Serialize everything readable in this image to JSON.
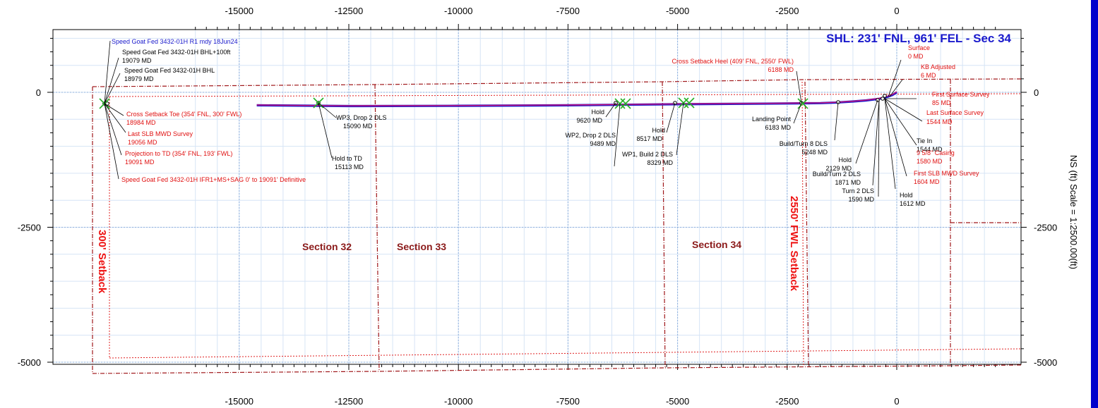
{
  "chart_data": {
    "type": "line",
    "title": "SHL: 231' FNL, 961' FEL - Sec 34",
    "y_axis_label": "NS (ft) Scale = 1:2500.00(ft)",
    "x_ticks": [
      -15000,
      -12500,
      -10000,
      -7500,
      -5000,
      -2500,
      0
    ],
    "y_ticks": [
      0,
      -2500,
      -5000
    ],
    "x_tick_labels": [
      "-15000",
      "-12500",
      "-10000",
      "-7500",
      "-5000",
      "-2500",
      "0"
    ],
    "y_tick_labels": [
      "0",
      "-2500",
      "-5000"
    ],
    "xlim": [
      -16000,
      2300
    ],
    "ylim": [
      -5500,
      1200
    ],
    "grid": true,
    "series": [
      {
        "name": "Speed Goat Fed 3432-01H R1 mdy 18Jun24",
        "color": "#1a1acc",
        "x": [
          0,
          -40,
          -100,
          -200,
          -400,
          -700,
          -1000,
          -1400,
          -1740,
          -3000,
          -5000,
          -7500,
          -10000,
          -12500,
          -14600
        ],
        "y": [
          0,
          -20,
          -50,
          -80,
          -120,
          -150,
          -170,
          -190,
          -200,
          -210,
          -220,
          -240,
          -250,
          -255,
          -240
        ]
      },
      {
        "name": "Speed Goat Fed 3432-01H IFR1+MS+SAG 0' to 19091' Definitive",
        "color": "#cc1177",
        "x": [
          0,
          -40,
          -100,
          -200,
          -400,
          -700,
          -1000,
          -1400,
          -1740,
          -3000,
          -5000,
          -7500,
          -10000,
          -12500,
          -14600
        ],
        "y": [
          10,
          -10,
          -40,
          -70,
          -110,
          -145,
          -165,
          -185,
          -195,
          -205,
          -215,
          -235,
          -245,
          -250,
          -235
        ]
      }
    ],
    "annotations": [
      {
        "text": "Speed Goat Fed 3432-01H R1 mdy 18Jun24",
        "color": "blue"
      },
      {
        "text": "Speed Goat Fed 3432-01H BHL+100ft",
        "color": "black"
      },
      {
        "text": "19079 MD",
        "color": "black"
      },
      {
        "text": "Speed Goat Fed 3432-01H BHL",
        "color": "black"
      },
      {
        "text": "18979 MD",
        "color": "black"
      },
      {
        "text": "Cross Setback Toe (354' FNL, 300' FWL)",
        "color": "red"
      },
      {
        "text": "18984 MD",
        "color": "red"
      },
      {
        "text": "Last SLB MWD Survey",
        "color": "red"
      },
      {
        "text": "19056 MD",
        "color": "red"
      },
      {
        "text": "Projection to TD (354' FNL, 193' FWL)",
        "color": "red"
      },
      {
        "text": "19091 MD",
        "color": "red"
      },
      {
        "text": "Speed Goat Fed 3432-01H IFR1+MS+SAG 0' to 19091' Definitive",
        "color": "red"
      },
      {
        "text": "WP3, Drop 2 DLS",
        "color": "black"
      },
      {
        "text": "15090 MD",
        "color": "black"
      },
      {
        "text": "Hold to TD",
        "color": "black"
      },
      {
        "text": "15113 MD",
        "color": "black"
      },
      {
        "text": "Hold",
        "color": "black"
      },
      {
        "text": "9620 MD",
        "color": "black"
      },
      {
        "text": "WP2, Drop 2 DLS",
        "color": "black"
      },
      {
        "text": "9489 MD",
        "color": "black"
      },
      {
        "text": "Hold",
        "color": "black"
      },
      {
        "text": "8517 MD",
        "color": "black"
      },
      {
        "text": "WP1, Build 2 DLS",
        "color": "black"
      },
      {
        "text": "8329 MD",
        "color": "black"
      },
      {
        "text": "Cross Setback Heel (409' FNL, 2550' FWL)",
        "color": "red"
      },
      {
        "text": "6188 MD",
        "color": "red"
      },
      {
        "text": "Landing Point",
        "color": "black"
      },
      {
        "text": "6183 MD",
        "color": "black"
      },
      {
        "text": "Build/Turn 8 DLS",
        "color": "black"
      },
      {
        "text": "5248 MD",
        "color": "black"
      },
      {
        "text": "Hold",
        "color": "black"
      },
      {
        "text": "2129 MD",
        "color": "black"
      },
      {
        "text": "Build/Turn 2 DLS",
        "color": "black"
      },
      {
        "text": "1871 MD",
        "color": "black"
      },
      {
        "text": "Turn 2 DLS",
        "color": "black"
      },
      {
        "text": "1590 MD",
        "color": "black"
      },
      {
        "text": "Hold",
        "color": "black"
      },
      {
        "text": "1612 MD",
        "color": "black"
      },
      {
        "text": "Tie In",
        "color": "black"
      },
      {
        "text": "1544 MD",
        "color": "black"
      },
      {
        "text": "Surface",
        "color": "red"
      },
      {
        "text": "0 MD",
        "color": "red"
      },
      {
        "text": "KB Adjusted",
        "color": "red"
      },
      {
        "text": "6 MD",
        "color": "red"
      },
      {
        "text": "First Surface Survey",
        "color": "red"
      },
      {
        "text": "85 MD",
        "color": "red"
      },
      {
        "text": "Last Surface Survey",
        "color": "red"
      },
      {
        "text": "1544 MD",
        "color": "red"
      },
      {
        "text": "9 5/8\" Casing",
        "color": "red"
      },
      {
        "text": "1580 MD",
        "color": "red"
      },
      {
        "text": "First SLB MWD Survey",
        "color": "red"
      },
      {
        "text": "1604 MD",
        "color": "red"
      }
    ],
    "region_labels": [
      "Section 32",
      "Section 33",
      "Section 34",
      "300' Setback",
      "2550' FWL Setback"
    ]
  }
}
